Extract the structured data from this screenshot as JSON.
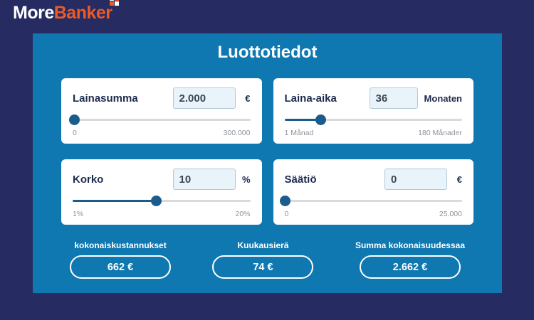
{
  "logo": {
    "part1": "More",
    "part2": "Banker"
  },
  "panel": {
    "title": "Luottotiedot"
  },
  "cards": [
    {
      "label": "Lainasumma",
      "value": "2.000",
      "unit": "€",
      "min_label": "0",
      "max_label": "300.000",
      "slider_percent": 1
    },
    {
      "label": "Laina-aika",
      "value": "36",
      "unit": "Monaten",
      "min_label": "1 Månad",
      "max_label": "180 Månader",
      "slider_percent": 20.5
    },
    {
      "label": "Korko",
      "value": "10",
      "unit": "%",
      "min_label": "1%",
      "max_label": "20%",
      "slider_percent": 47
    },
    {
      "label": "Säätiö",
      "value": "0",
      "unit": "€",
      "min_label": "0",
      "max_label": "25.000",
      "slider_percent": 0.5
    }
  ],
  "results": [
    {
      "label": "kokonaiskustannukset",
      "value": "662 €"
    },
    {
      "label": "Kuukausierä",
      "value": "74 €"
    },
    {
      "label": "Summa kokonaisuudessaa",
      "value": "2.662 €"
    }
  ],
  "colors": {
    "navy": "#262b62",
    "panel-blue": "#0f78b0",
    "slider-blue": "#1a5c8c",
    "text-navy": "#1d2b4f",
    "input-bg": "#e9f3fa",
    "input-border": "#b2c8da",
    "track-gray": "#d8dadc",
    "muted-gray": "#8e939c",
    "orange": "#ee5a24",
    "white": "#ffffff"
  }
}
